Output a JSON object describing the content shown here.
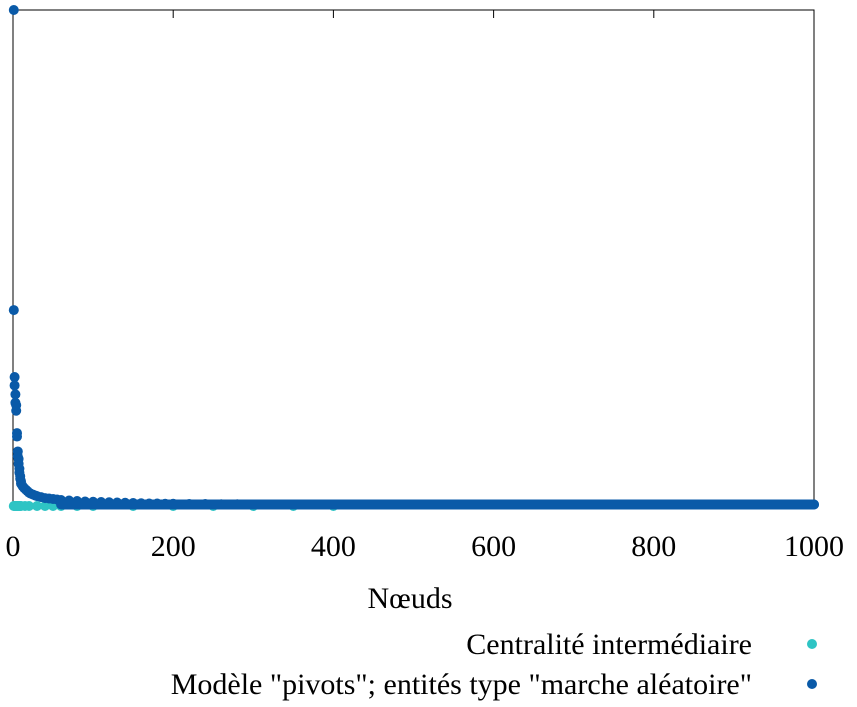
{
  "chart_data": {
    "type": "scatter",
    "title": "",
    "xlabel": "Nœuds",
    "ylabel": "",
    "xlim": [
      0,
      1000
    ],
    "ylim": [
      0,
      1
    ],
    "x_ticks": [
      0,
      200,
      400,
      600,
      800,
      1000
    ],
    "x_tick_labels": [
      "0",
      "200",
      "400",
      "600",
      "800",
      "1000"
    ],
    "y_ticks": [],
    "grid": false,
    "legend_position": "bottom-right",
    "series": [
      {
        "name": "Centralité intermédiaire",
        "color": "#2ec4c4",
        "x": [
          1,
          2,
          3,
          4,
          5,
          6,
          7,
          8,
          9,
          10,
          15,
          20,
          30,
          40,
          50,
          60,
          80,
          100,
          150,
          200,
          250,
          300,
          350,
          400
        ],
        "y": [
          0.0,
          0.0,
          0.0,
          0.0,
          0.0,
          0.0,
          0.0,
          0.0,
          0.0,
          0.0,
          0.0,
          0.0,
          0.0,
          0.0,
          0.0,
          0.0,
          0.0,
          0.0,
          0.0,
          0.0,
          0.0,
          0.0,
          0.0,
          0.0
        ]
      },
      {
        "name": "Modèle \"pivots\"; entités type \"marche aléatoire\"",
        "color": "#0a5aa8",
        "x": [
          1,
          1,
          2,
          2,
          3,
          3,
          4,
          4,
          5,
          5,
          6,
          6,
          7,
          7,
          8,
          8,
          9,
          9,
          10,
          10,
          12,
          14,
          16,
          18,
          20,
          22,
          25,
          28,
          30,
          35,
          40,
          45,
          50,
          55,
          60,
          70,
          80,
          90,
          100,
          110,
          120,
          130,
          140,
          150,
          160,
          170,
          180,
          190,
          200,
          220,
          240,
          260,
          280,
          300,
          320,
          340,
          360,
          380,
          400,
          420,
          440,
          460,
          480,
          500,
          520,
          540,
          560,
          580,
          600,
          620,
          640,
          660,
          680,
          700,
          720,
          740,
          760,
          780,
          800,
          820,
          840,
          860,
          880,
          900,
          920,
          940,
          960,
          980,
          1000
        ],
        "y": [
          1.0,
          0.395,
          0.26,
          0.243,
          0.225,
          0.208,
          0.203,
          0.192,
          0.147,
          0.14,
          0.11,
          0.1,
          0.095,
          0.085,
          0.075,
          0.067,
          0.06,
          0.055,
          0.05,
          0.045,
          0.04,
          0.036,
          0.033,
          0.03,
          0.027,
          0.025,
          0.023,
          0.021,
          0.02,
          0.018,
          0.016,
          0.015,
          0.014,
          0.013,
          0.012,
          0.011,
          0.01,
          0.009,
          0.0085,
          0.008,
          0.0075,
          0.007,
          0.0065,
          0.006,
          0.0055,
          0.005,
          0.005,
          0.0045,
          0.0045,
          0.004,
          0.004,
          0.0035,
          0.0035,
          0.003,
          0.003,
          0.003,
          0.003,
          0.003,
          0.003,
          0.003,
          0.003,
          0.003,
          0.003,
          0.003,
          0.003,
          0.003,
          0.003,
          0.003,
          0.003,
          0.003,
          0.003,
          0.003,
          0.003,
          0.003,
          0.003,
          0.003,
          0.003,
          0.003,
          0.003,
          0.003,
          0.003,
          0.003,
          0.003,
          0.003,
          0.003,
          0.003,
          0.003,
          0.003,
          0.003
        ]
      }
    ]
  }
}
